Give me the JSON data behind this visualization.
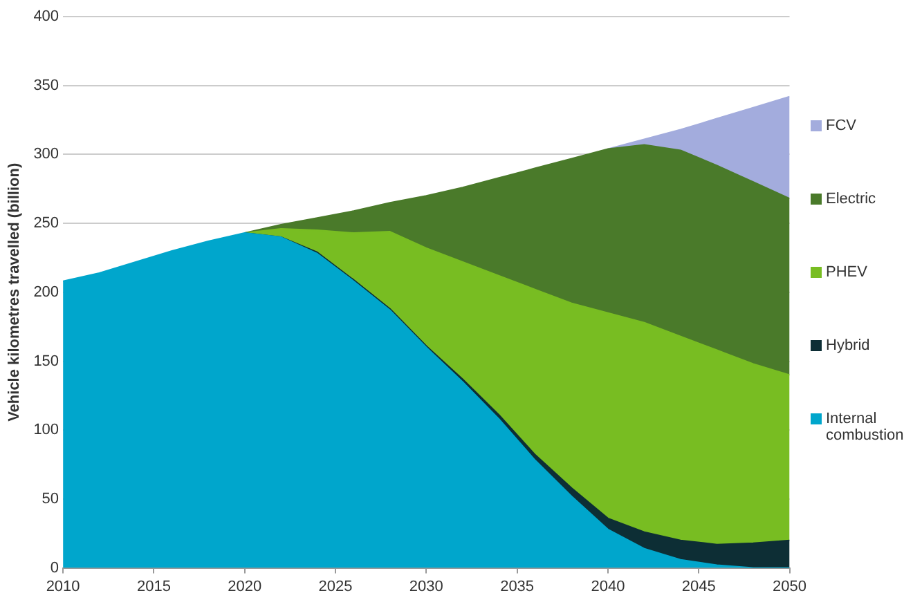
{
  "chart_data": {
    "type": "area",
    "stacked": true,
    "ylabel": "Vehicle kilometres travelled (billion)",
    "x": [
      2010,
      2012,
      2014,
      2016,
      2018,
      2020,
      2022,
      2024,
      2026,
      2028,
      2030,
      2032,
      2034,
      2036,
      2038,
      2040,
      2042,
      2044,
      2046,
      2048,
      2050
    ],
    "series": [
      {
        "name": "Internal combustion",
        "color": "#00a6cc",
        "values": [
          208,
          214,
          222,
          230,
          237,
          243,
          240,
          228,
          208,
          187,
          160,
          135,
          108,
          78,
          52,
          28,
          14,
          6,
          2,
          0,
          0
        ]
      },
      {
        "name": "Hybrid",
        "color": "#0d2e35",
        "values": [
          null,
          null,
          null,
          null,
          null,
          0,
          0,
          1,
          1,
          1,
          1,
          2,
          3,
          4,
          6,
          8,
          12,
          14,
          15,
          18,
          20
        ]
      },
      {
        "name": "PHEV",
        "color": "#78bd22",
        "values": [
          null,
          null,
          null,
          null,
          null,
          0,
          6,
          16,
          34,
          56,
          71,
          85,
          101,
          120,
          134,
          149,
          152,
          148,
          141,
          130,
          120
        ]
      },
      {
        "name": "Electric",
        "color": "#4a7a2a",
        "values": [
          null,
          null,
          null,
          null,
          null,
          0,
          3,
          9,
          16,
          21,
          38,
          54,
          71,
          88,
          105,
          119,
          129,
          135,
          134,
          132,
          128
        ]
      },
      {
        "name": "FCV",
        "color": "#a3acdd",
        "values": [
          null,
          null,
          null,
          null,
          null,
          null,
          null,
          null,
          null,
          null,
          null,
          null,
          null,
          null,
          null,
          0,
          4,
          15,
          34,
          54,
          74
        ]
      }
    ],
    "xlim": [
      2010,
      2050
    ],
    "xticks": [
      2010,
      2015,
      2020,
      2025,
      2030,
      2035,
      2040,
      2045,
      2050
    ],
    "ylim": [
      0,
      400
    ],
    "yticks": [
      0,
      50,
      100,
      150,
      200,
      250,
      300,
      350,
      400
    ],
    "grid": "y",
    "legend": "right"
  }
}
